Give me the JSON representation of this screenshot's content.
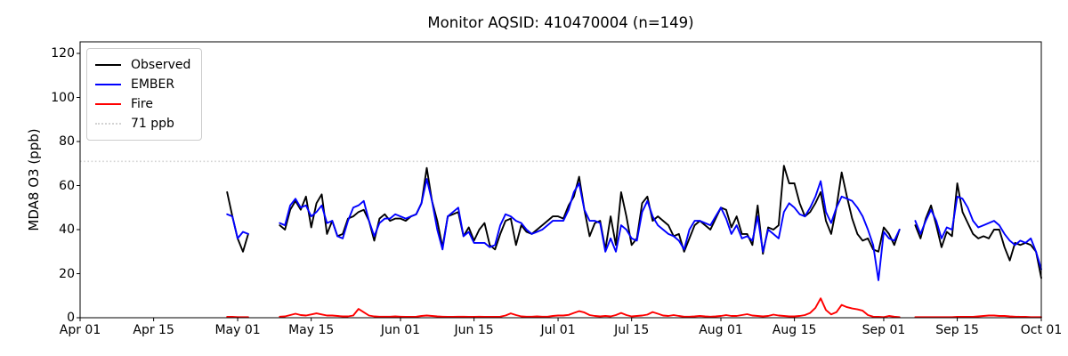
{
  "chart_data": {
    "type": "line",
    "title": "Monitor AQSID: 410470004 (n=149)",
    "xlabel": "",
    "ylabel": "MDA8 O3 (ppb)",
    "ylim": [
      0,
      125
    ],
    "x_range": [
      "Apr 01",
      "Oct 01"
    ],
    "grid": false,
    "legend_position": "upper left",
    "y_ticks": [
      0,
      20,
      40,
      60,
      80,
      100,
      120
    ],
    "x_ticks": [
      "Apr 01",
      "Apr 15",
      "May 01",
      "May 15",
      "Jun 01",
      "Jun 15",
      "Jul 01",
      "Jul 15",
      "Aug 01",
      "Aug 15",
      "Sep 01",
      "Sep 15",
      "Oct 01"
    ],
    "threshold": {
      "label": "71 ppb",
      "value": 71,
      "color": "#d3d3d3",
      "style": "dotted"
    },
    "dates": [
      "Apr 29",
      "Apr 30",
      "May 01",
      "May 02",
      "May 03",
      "May 04",
      "May 05",
      "May 06",
      "May 07",
      "May 08",
      "May 09",
      "May 10",
      "May 11",
      "May 12",
      "May 13",
      "May 14",
      "May 15",
      "May 16",
      "May 17",
      "May 18",
      "May 19",
      "May 20",
      "May 21",
      "May 22",
      "May 23",
      "May 24",
      "May 25",
      "May 26",
      "May 27",
      "May 28",
      "May 29",
      "May 30",
      "May 31",
      "Jun 01",
      "Jun 02",
      "Jun 03",
      "Jun 04",
      "Jun 05",
      "Jun 06",
      "Jun 07",
      "Jun 08",
      "Jun 09",
      "Jun 10",
      "Jun 11",
      "Jun 12",
      "Jun 13",
      "Jun 14",
      "Jun 15",
      "Jun 16",
      "Jun 17",
      "Jun 18",
      "Jun 19",
      "Jun 20",
      "Jun 21",
      "Jun 22",
      "Jun 23",
      "Jun 24",
      "Jun 25",
      "Jun 26",
      "Jun 27",
      "Jun 28",
      "Jun 29",
      "Jun 30",
      "Jul 01",
      "Jul 02",
      "Jul 03",
      "Jul 04",
      "Jul 05",
      "Jul 06",
      "Jul 07",
      "Jul 08",
      "Jul 09",
      "Jul 10",
      "Jul 11",
      "Jul 12",
      "Jul 13",
      "Jul 14",
      "Jul 15",
      "Jul 16",
      "Jul 17",
      "Jul 18",
      "Jul 19",
      "Jul 20",
      "Jul 21",
      "Jul 22",
      "Jul 23",
      "Jul 24",
      "Jul 25",
      "Jul 26",
      "Jul 27",
      "Jul 28",
      "Jul 29",
      "Jul 30",
      "Jul 31",
      "Aug 01",
      "Aug 02",
      "Aug 03",
      "Aug 04",
      "Aug 05",
      "Aug 06",
      "Aug 07",
      "Aug 08",
      "Aug 09",
      "Aug 10",
      "Aug 11",
      "Aug 12",
      "Aug 13",
      "Aug 14",
      "Aug 15",
      "Aug 16",
      "Aug 17",
      "Aug 18",
      "Aug 19",
      "Aug 20",
      "Aug 21",
      "Aug 22",
      "Aug 23",
      "Aug 24",
      "Aug 25",
      "Aug 26",
      "Aug 27",
      "Aug 28",
      "Aug 29",
      "Aug 30",
      "Aug 31",
      "Sep 01",
      "Sep 02",
      "Sep 03",
      "Sep 04",
      "Sep 05",
      "Sep 06",
      "Sep 07",
      "Sep 08",
      "Sep 09",
      "Sep 10",
      "Sep 11",
      "Sep 12",
      "Sep 13",
      "Sep 14",
      "Sep 15",
      "Sep 16",
      "Sep 17",
      "Sep 18",
      "Sep 19",
      "Sep 20",
      "Sep 21",
      "Sep 22",
      "Sep 23",
      "Sep 24",
      "Sep 25",
      "Sep 26",
      "Sep 27",
      "Sep 28",
      "Sep 29",
      "Sep 30",
      "Oct 01"
    ],
    "series": [
      {
        "name": "Observed",
        "color": "#000000",
        "values": [
          57,
          46,
          36,
          30,
          38,
          null,
          null,
          null,
          null,
          null,
          42,
          40,
          49,
          53,
          49,
          55,
          41,
          52,
          56,
          38,
          44,
          37,
          38,
          45,
          46,
          48,
          49,
          44,
          35,
          45,
          47,
          44,
          45,
          45,
          44,
          46,
          47,
          52,
          68,
          53,
          44,
          32,
          46,
          47,
          48,
          37,
          41,
          35,
          40,
          43,
          33,
          31,
          38,
          44,
          45,
          33,
          42,
          39,
          38,
          40,
          42,
          44,
          46,
          46,
          45,
          51,
          55,
          64,
          49,
          37,
          43,
          44,
          31,
          46,
          33,
          57,
          46,
          33,
          36,
          52,
          55,
          44,
          46,
          44,
          42,
          37,
          38,
          30,
          36,
          42,
          44,
          42,
          40,
          45,
          50,
          49,
          41,
          46,
          38,
          38,
          33,
          51,
          29,
          41,
          40,
          42,
          69,
          61,
          61,
          52,
          46,
          48,
          52,
          57,
          44,
          38,
          50,
          66,
          55,
          45,
          38,
          35,
          36,
          31,
          30,
          41,
          38,
          33,
          40,
          null,
          null,
          42,
          36,
          45,
          51,
          42,
          32,
          39,
          37,
          61,
          48,
          43,
          38,
          36,
          37,
          36,
          40,
          40,
          32,
          26,
          34,
          33,
          34,
          33,
          30,
          18
        ]
      },
      {
        "name": "EMBER",
        "color": "#0000ff",
        "values": [
          47,
          46,
          36,
          39,
          38,
          null,
          null,
          null,
          null,
          null,
          43,
          42,
          51,
          54,
          50,
          51,
          46,
          48,
          51,
          43,
          44,
          37,
          36,
          44,
          50,
          51,
          53,
          44,
          37,
          43,
          45,
          45,
          47,
          46,
          45,
          46,
          47,
          52,
          63,
          53,
          40,
          31,
          46,
          48,
          50,
          37,
          39,
          34,
          34,
          34,
          32,
          33,
          42,
          47,
          46,
          44,
          43,
          40,
          38,
          39,
          40,
          42,
          44,
          44,
          44,
          49,
          57,
          61,
          49,
          44,
          44,
          43,
          30,
          36,
          30,
          42,
          40,
          36,
          35,
          48,
          53,
          46,
          42,
          40,
          38,
          37,
          35,
          31,
          40,
          44,
          44,
          43,
          42,
          46,
          50,
          45,
          38,
          42,
          36,
          37,
          35,
          46,
          30,
          40,
          38,
          36,
          48,
          52,
          50,
          47,
          46,
          50,
          55,
          62,
          48,
          43,
          50,
          55,
          54,
          53,
          50,
          46,
          40,
          33,
          17,
          39,
          36,
          35,
          40,
          null,
          null,
          44,
          38,
          44,
          49,
          44,
          36,
          41,
          40,
          55,
          54,
          50,
          44,
          41,
          42,
          43,
          44,
          42,
          38,
          35,
          33,
          35,
          34,
          36,
          30,
          22
        ]
      },
      {
        "name": "Fire",
        "color": "#ff0000",
        "values": [
          0.4,
          0.4,
          0.3,
          0.3,
          0.3,
          null,
          null,
          null,
          null,
          null,
          0.5,
          0.6,
          1.2,
          1.8,
          1.2,
          1.0,
          1.5,
          2.0,
          1.5,
          1.0,
          1.0,
          0.8,
          0.6,
          0.6,
          1.0,
          4.0,
          2.5,
          1.0,
          0.6,
          0.5,
          0.5,
          0.5,
          0.6,
          0.5,
          0.4,
          0.4,
          0.5,
          0.8,
          1.0,
          0.8,
          0.6,
          0.5,
          0.4,
          0.4,
          0.5,
          0.5,
          0.4,
          0.4,
          0.5,
          0.4,
          0.4,
          0.4,
          0.5,
          1.0,
          2.0,
          1.2,
          0.6,
          0.5,
          0.5,
          0.6,
          0.5,
          0.5,
          0.8,
          1.0,
          1.0,
          1.3,
          2.2,
          3.0,
          2.4,
          1.2,
          0.8,
          0.6,
          0.8,
          0.6,
          1.2,
          2.2,
          1.2,
          0.6,
          0.8,
          1.0,
          1.4,
          2.6,
          1.8,
          1.0,
          0.8,
          1.2,
          0.8,
          0.5,
          0.5,
          0.6,
          0.8,
          0.6,
          0.5,
          0.6,
          0.8,
          1.2,
          0.8,
          0.8,
          1.2,
          1.6,
          1.0,
          0.8,
          0.6,
          0.8,
          1.4,
          1.0,
          0.8,
          0.6,
          0.6,
          0.8,
          1.2,
          2.2,
          4.5,
          8.8,
          3.5,
          1.5,
          2.5,
          5.8,
          4.8,
          4.2,
          3.8,
          3.2,
          1.2,
          0.5,
          0.4,
          0.3,
          0.8,
          0.5,
          0.3,
          null,
          null,
          0.3,
          0.3,
          0.3,
          0.3,
          0.3,
          0.3,
          0.3,
          0.3,
          0.4,
          0.4,
          0.4,
          0.4,
          0.6,
          0.8,
          1.0,
          1.0,
          0.8,
          0.8,
          0.6,
          0.5,
          0.4,
          0.4,
          0.3,
          0.3,
          0.3
        ]
      }
    ]
  }
}
